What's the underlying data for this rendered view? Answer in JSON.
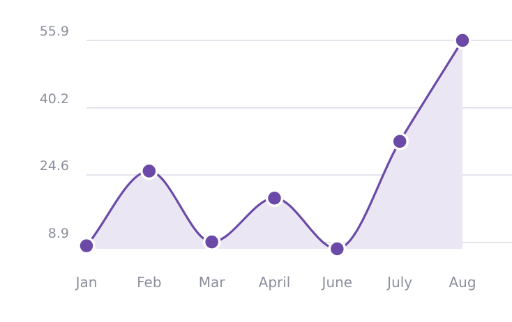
{
  "chart_data": {
    "type": "area",
    "categories": [
      "Jan",
      "Feb",
      "Mar",
      "April",
      "June",
      "July",
      "Aug"
    ],
    "series": [
      {
        "values": [
          8.1,
          25.5,
          9.0,
          19.2,
          7.4,
          32.4,
          55.9
        ]
      }
    ],
    "y_ticks": [
      "8.9",
      "24.6",
      "40.2",
      "55.9"
    ],
    "ylim": [
      7.4,
      55.9
    ],
    "grid": true,
    "legend": false,
    "title": "",
    "xlabel": "",
    "ylabel": "",
    "colors": {
      "line": "#6a4aa6",
      "area": "#ebe6f4",
      "grid": "#dcdbe6",
      "text": "#8a8f9c"
    }
  }
}
